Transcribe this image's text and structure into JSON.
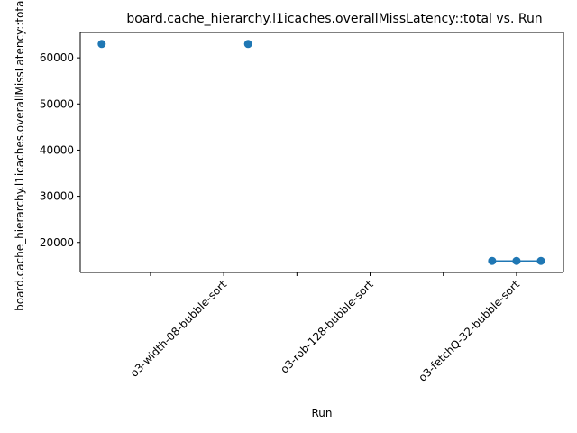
{
  "chart_data": {
    "type": "line",
    "title": "board.cache_hierarchy.l1icaches.overallMissLatency::total vs. Run",
    "xlabel": "Run",
    "ylabel": "board.cache_hierarchy.l1icaches.overallMissLatency::total",
    "x_tick_labels": [
      "o3-width-08-bubble-sort",
      "o3-rob-128-bubble-sort",
      "o3-fetchQ-32-bubble-sort"
    ],
    "y_ticks": [
      20000,
      30000,
      40000,
      50000,
      60000
    ],
    "ylim": [
      13500,
      65500
    ],
    "grid": false,
    "legend": "none",
    "series": [
      {
        "color": "#1f77b4",
        "points": [
          {
            "run": 0,
            "value": 63000,
            "connect": false
          },
          {
            "run": 6,
            "value": 63000,
            "connect": false
          },
          {
            "run": 16,
            "value": 16000,
            "connect": true
          },
          {
            "run": 17,
            "value": 16000,
            "connect": true
          },
          {
            "run": 18,
            "value": 16000,
            "connect": true
          }
        ]
      }
    ]
  }
}
